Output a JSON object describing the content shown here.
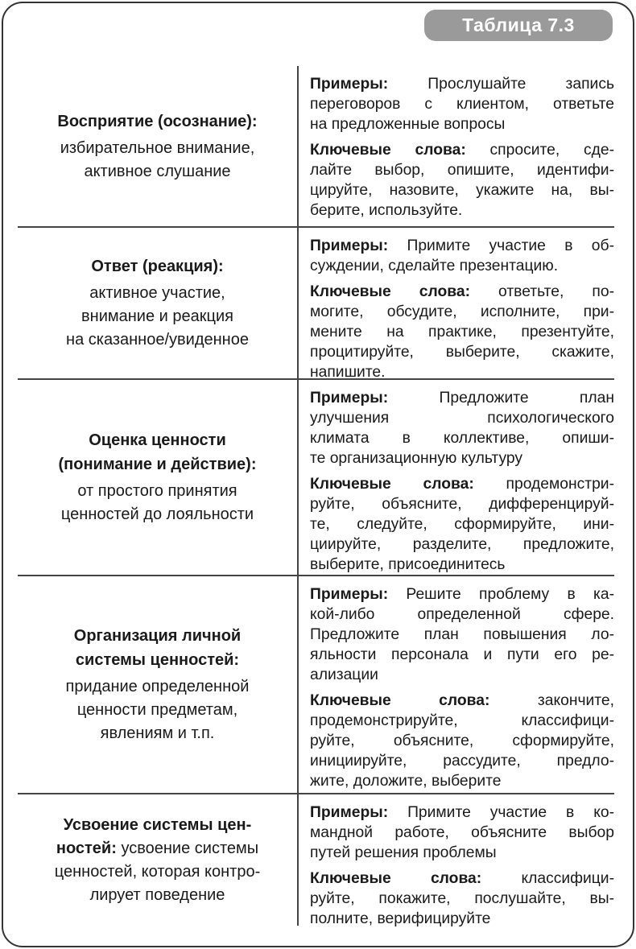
{
  "header": {
    "badge": "Таблица 7.3"
  },
  "rows": [
    {
      "left": [
        {
          "b": "Восприятие (осознание):",
          "t": ""
        },
        {
          "b": "",
          "t": "избирательное внимание,"
        },
        {
          "b": "",
          "t": "активное слушание"
        }
      ],
      "examples": [
        {
          "b": "Примеры:",
          "t": " Прослушайте запись"
        },
        {
          "b": "",
          "t": "переговоров с клиентом, ответьте"
        },
        {
          "b": "",
          "t": "на предложенные вопросы"
        }
      ],
      "keywords": [
        {
          "b": "Ключевые слова:",
          "t": " спросите, сде-"
        },
        {
          "b": "",
          "t": "лайте выбор, опишите, идентифи-"
        },
        {
          "b": "",
          "t": "цируйте, назовите, укажите на, вы-"
        },
        {
          "b": "",
          "t": "берите, используйте."
        }
      ]
    },
    {
      "left": [
        {
          "b": "Ответ (реакция):",
          "t": ""
        },
        {
          "b": "",
          "t": "активное участие,"
        },
        {
          "b": "",
          "t": "внимание и реакция"
        },
        {
          "b": "",
          "t": "на сказанное/увиденное"
        }
      ],
      "examples": [
        {
          "b": "Примеры:",
          "t": " Примите участие в об-"
        },
        {
          "b": "",
          "t": "суждении, сделайте презентацию."
        }
      ],
      "keywords": [
        {
          "b": "Ключевые слова:",
          "t": " ответьте, по-"
        },
        {
          "b": "",
          "t": "могите, обсудите, исполните, при-"
        },
        {
          "b": "",
          "t": "мените на практике, презентуйте,"
        },
        {
          "b": "",
          "t": "процитируйте, выберите, скажите,"
        },
        {
          "b": "",
          "t": "напишите."
        }
      ]
    },
    {
      "left": [
        {
          "b": "Оценка ценности",
          "t": ""
        },
        {
          "b": "(понимание и действие):",
          "t": ""
        },
        {
          "b": "",
          "t": "от простого принятия"
        },
        {
          "b": "",
          "t": "ценностей до лояльности"
        }
      ],
      "examples": [
        {
          "b": "Примеры:",
          "t": " Предложите план"
        },
        {
          "b": "",
          "t": "улучшения психологического"
        },
        {
          "b": "",
          "t": "климата в коллективе, опиши-"
        },
        {
          "b": "",
          "t": "те организационную культуру"
        }
      ],
      "keywords": [
        {
          "b": "Ключевые слова:",
          "t": " продемонстри-"
        },
        {
          "b": "",
          "t": "руйте, объясните, дифференцируй-"
        },
        {
          "b": "",
          "t": "те, следуйте, сформируйте, ини-"
        },
        {
          "b": "",
          "t": "циируйте, разделите, предложите,"
        },
        {
          "b": "",
          "t": "выберите, присоединитесь"
        }
      ]
    },
    {
      "left": [
        {
          "b": "Организация личной",
          "t": ""
        },
        {
          "b": "системы ценностей:",
          "t": ""
        },
        {
          "b": "",
          "t": "придание определенной"
        },
        {
          "b": "",
          "t": "ценности предметам,"
        },
        {
          "b": "",
          "t": "явлениям и т.п."
        }
      ],
      "examples": [
        {
          "b": "Примеры:",
          "t": " Решите проблему в ка-"
        },
        {
          "b": "",
          "t": "кой-либо определенной сфере."
        },
        {
          "b": "",
          "t": "Предложите план повышения ло-"
        },
        {
          "b": "",
          "t": "яльности персонала и пути его ре-"
        },
        {
          "b": "",
          "t": "ализации"
        }
      ],
      "keywords": [
        {
          "b": "Ключевые слова:",
          "t": " закончите,"
        },
        {
          "b": "",
          "t": "продемонстрируйте, классифици-"
        },
        {
          "b": "",
          "t": "руйте, объясните, сформируйте,"
        },
        {
          "b": "",
          "t": "инициируйте, рассудите, предло-"
        },
        {
          "b": "",
          "t": "жите, доложите, выберите"
        }
      ]
    },
    {
      "left": [
        {
          "b": "Усвоение системы цен-",
          "t": ""
        },
        {
          "b": "ностей:",
          "t": " усвоение системы"
        },
        {
          "b": "",
          "t": "ценностей, которая контро-"
        },
        {
          "b": "",
          "t": "лирует поведение"
        }
      ],
      "examples": [
        {
          "b": "Примеры:",
          "t": " Примите участие в ко-"
        },
        {
          "b": "",
          "t": "мандной работе, объясните выбор"
        },
        {
          "b": "",
          "t": "путей решения проблемы"
        }
      ],
      "keywords": [
        {
          "b": "Ключевые слова:",
          "t": " классифици-"
        },
        {
          "b": "",
          "t": "руйте, покажите, послушайте, вы-"
        },
        {
          "b": "",
          "t": "полните, верифицируйте"
        }
      ]
    }
  ]
}
